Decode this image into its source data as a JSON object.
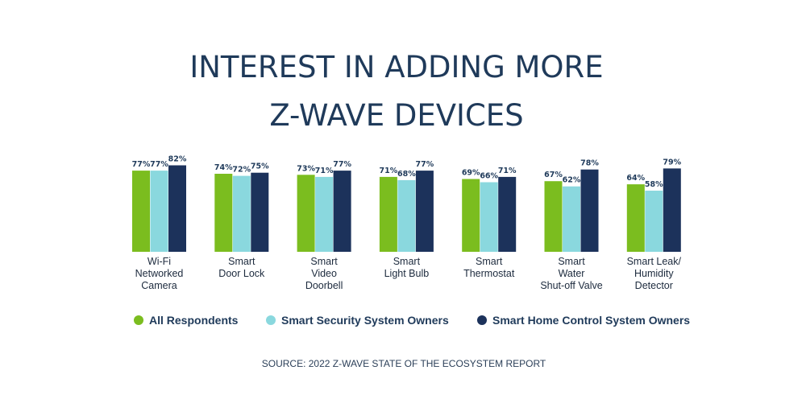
{
  "colors": {
    "series_1": "#7bbd1f",
    "series_2": "#8ad8de",
    "series_3": "#1c325b",
    "text": "#1f3a5a"
  },
  "chart_data": {
    "type": "bar",
    "title_lines": [
      "INTEREST IN ADDING MORE",
      "Z-WAVE DEVICES"
    ],
    "categories": [
      [
        "Wi-Fi",
        "Networked",
        "Camera"
      ],
      [
        "Smart",
        "Door Lock"
      ],
      [
        "Smart",
        "Video",
        "Doorbell"
      ],
      [
        "Smart",
        "Light Bulb"
      ],
      [
        "Smart",
        "Thermostat"
      ],
      [
        "Smart",
        "Water",
        "Shut-off Valve"
      ],
      [
        "Smart Leak/",
        "Humidity",
        "Detector"
      ]
    ],
    "series": [
      {
        "name": "All Respondents",
        "values": [
          77,
          74,
          73,
          71,
          69,
          67,
          64
        ]
      },
      {
        "name": "Smart Security System Owners",
        "values": [
          77,
          72,
          71,
          68,
          66,
          62,
          58
        ]
      },
      {
        "name": "Smart Home Control System Owners",
        "values": [
          82,
          75,
          77,
          77,
          71,
          78,
          79
        ]
      }
    ],
    "value_suffix": "%",
    "ylim": [
      0,
      100
    ],
    "grid": false,
    "legend_position": "bottom",
    "source": "SOURCE: 2022 Z-WAVE STATE OF THE ECOSYSTEM REPORT"
  }
}
